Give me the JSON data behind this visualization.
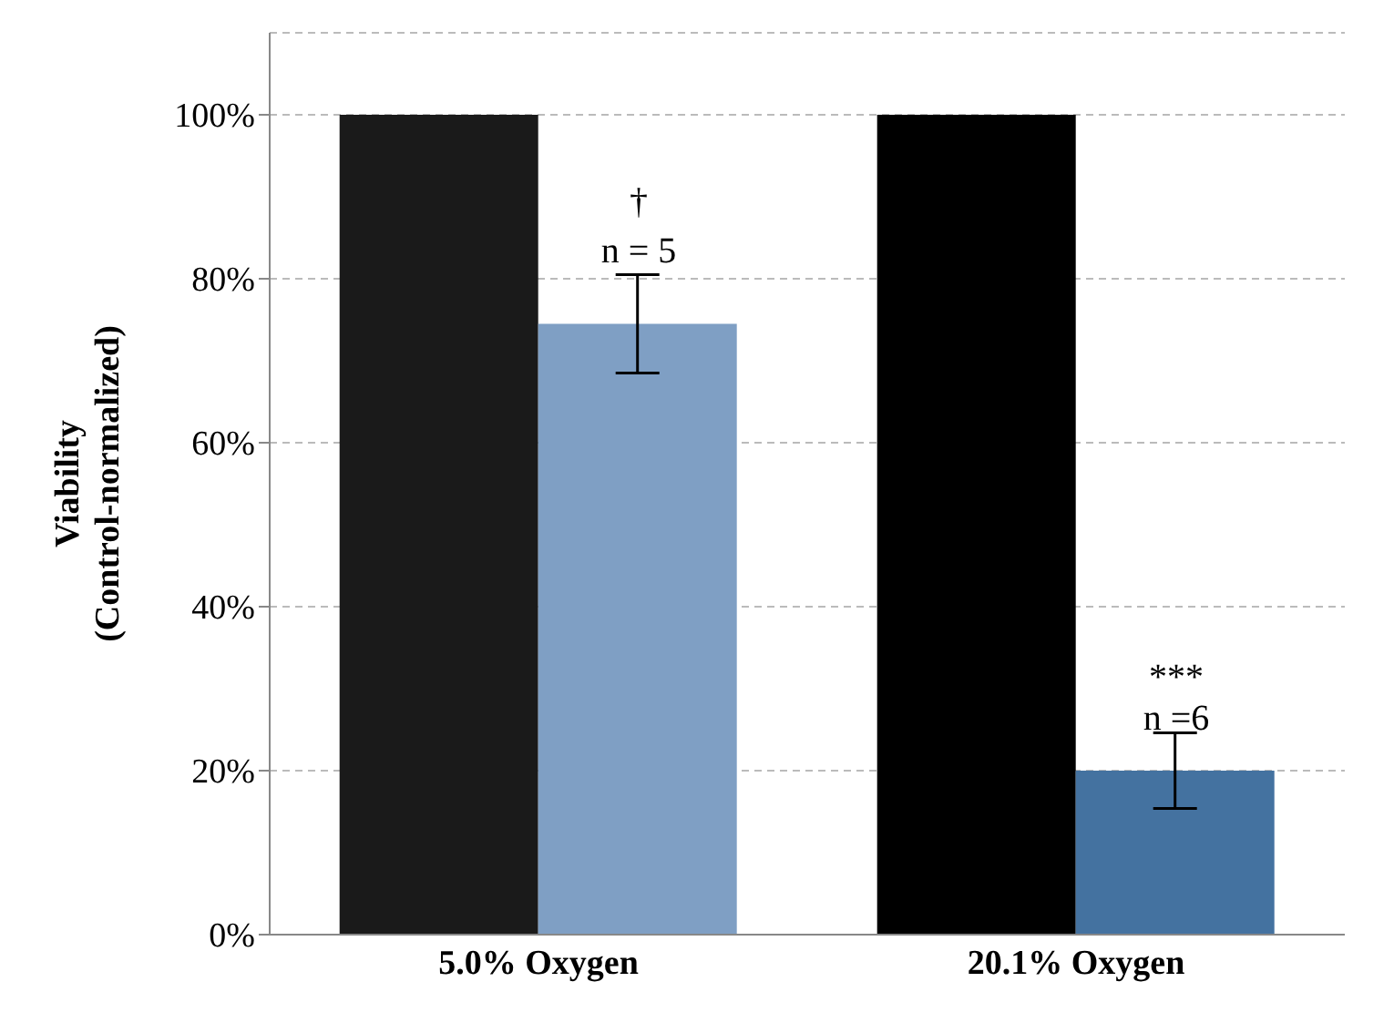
{
  "chart_data": {
    "type": "bar",
    "ylabel": "Viability\n(Control-normalized)",
    "categories": [
      "5.0% Oxygen",
      "20.1% Oxygen"
    ],
    "series": [
      {
        "colors": [
          "#1a1a1a",
          "#000000"
        ],
        "values": [
          100,
          100
        ]
      },
      {
        "colors": [
          "#7f9fc4",
          "#4472a0"
        ],
        "values": [
          74.5,
          20
        ],
        "errors": [
          6,
          4.6
        ]
      }
    ],
    "ylim": [
      0,
      110
    ],
    "yticks": [
      {
        "value": 0,
        "label": "0%"
      },
      {
        "value": 20,
        "label": "20%"
      },
      {
        "value": 40,
        "label": "40%"
      },
      {
        "value": 60,
        "label": "60%"
      },
      {
        "value": 80,
        "label": "80%"
      },
      {
        "value": 100,
        "label": "100%"
      }
    ],
    "grid": "y",
    "annotations": [
      {
        "text": "†",
        "x": "5.0% Oxygen",
        "y": 88
      },
      {
        "text": "n = 5",
        "x": "5.0% Oxygen",
        "y": 82
      },
      {
        "text": "***",
        "x": "20.1% Oxygen",
        "y": 30
      },
      {
        "text": "n =6",
        "x": "20.1% Oxygen",
        "y": 25
      }
    ]
  }
}
